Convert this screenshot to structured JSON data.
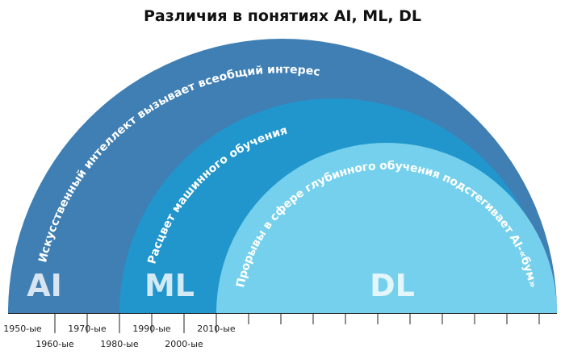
{
  "title": "Различия в понятиях AI, ML, DL",
  "areas": [
    {
      "abbr": "AI",
      "caption": "Искусственный интеллект вызывает всеобщий интерес"
    },
    {
      "abbr": "ML",
      "caption": "Расцвет машинного обучения"
    },
    {
      "abbr": "DL",
      "caption": "Прорывы в сфере глубинного обучения подстегивает AI-«бум»"
    }
  ],
  "timeline": [
    "1950-ые",
    "1960-ые",
    "1970-ые",
    "1980-ые",
    "1990-ые",
    "2000-ые",
    "2010-ые"
  ]
}
